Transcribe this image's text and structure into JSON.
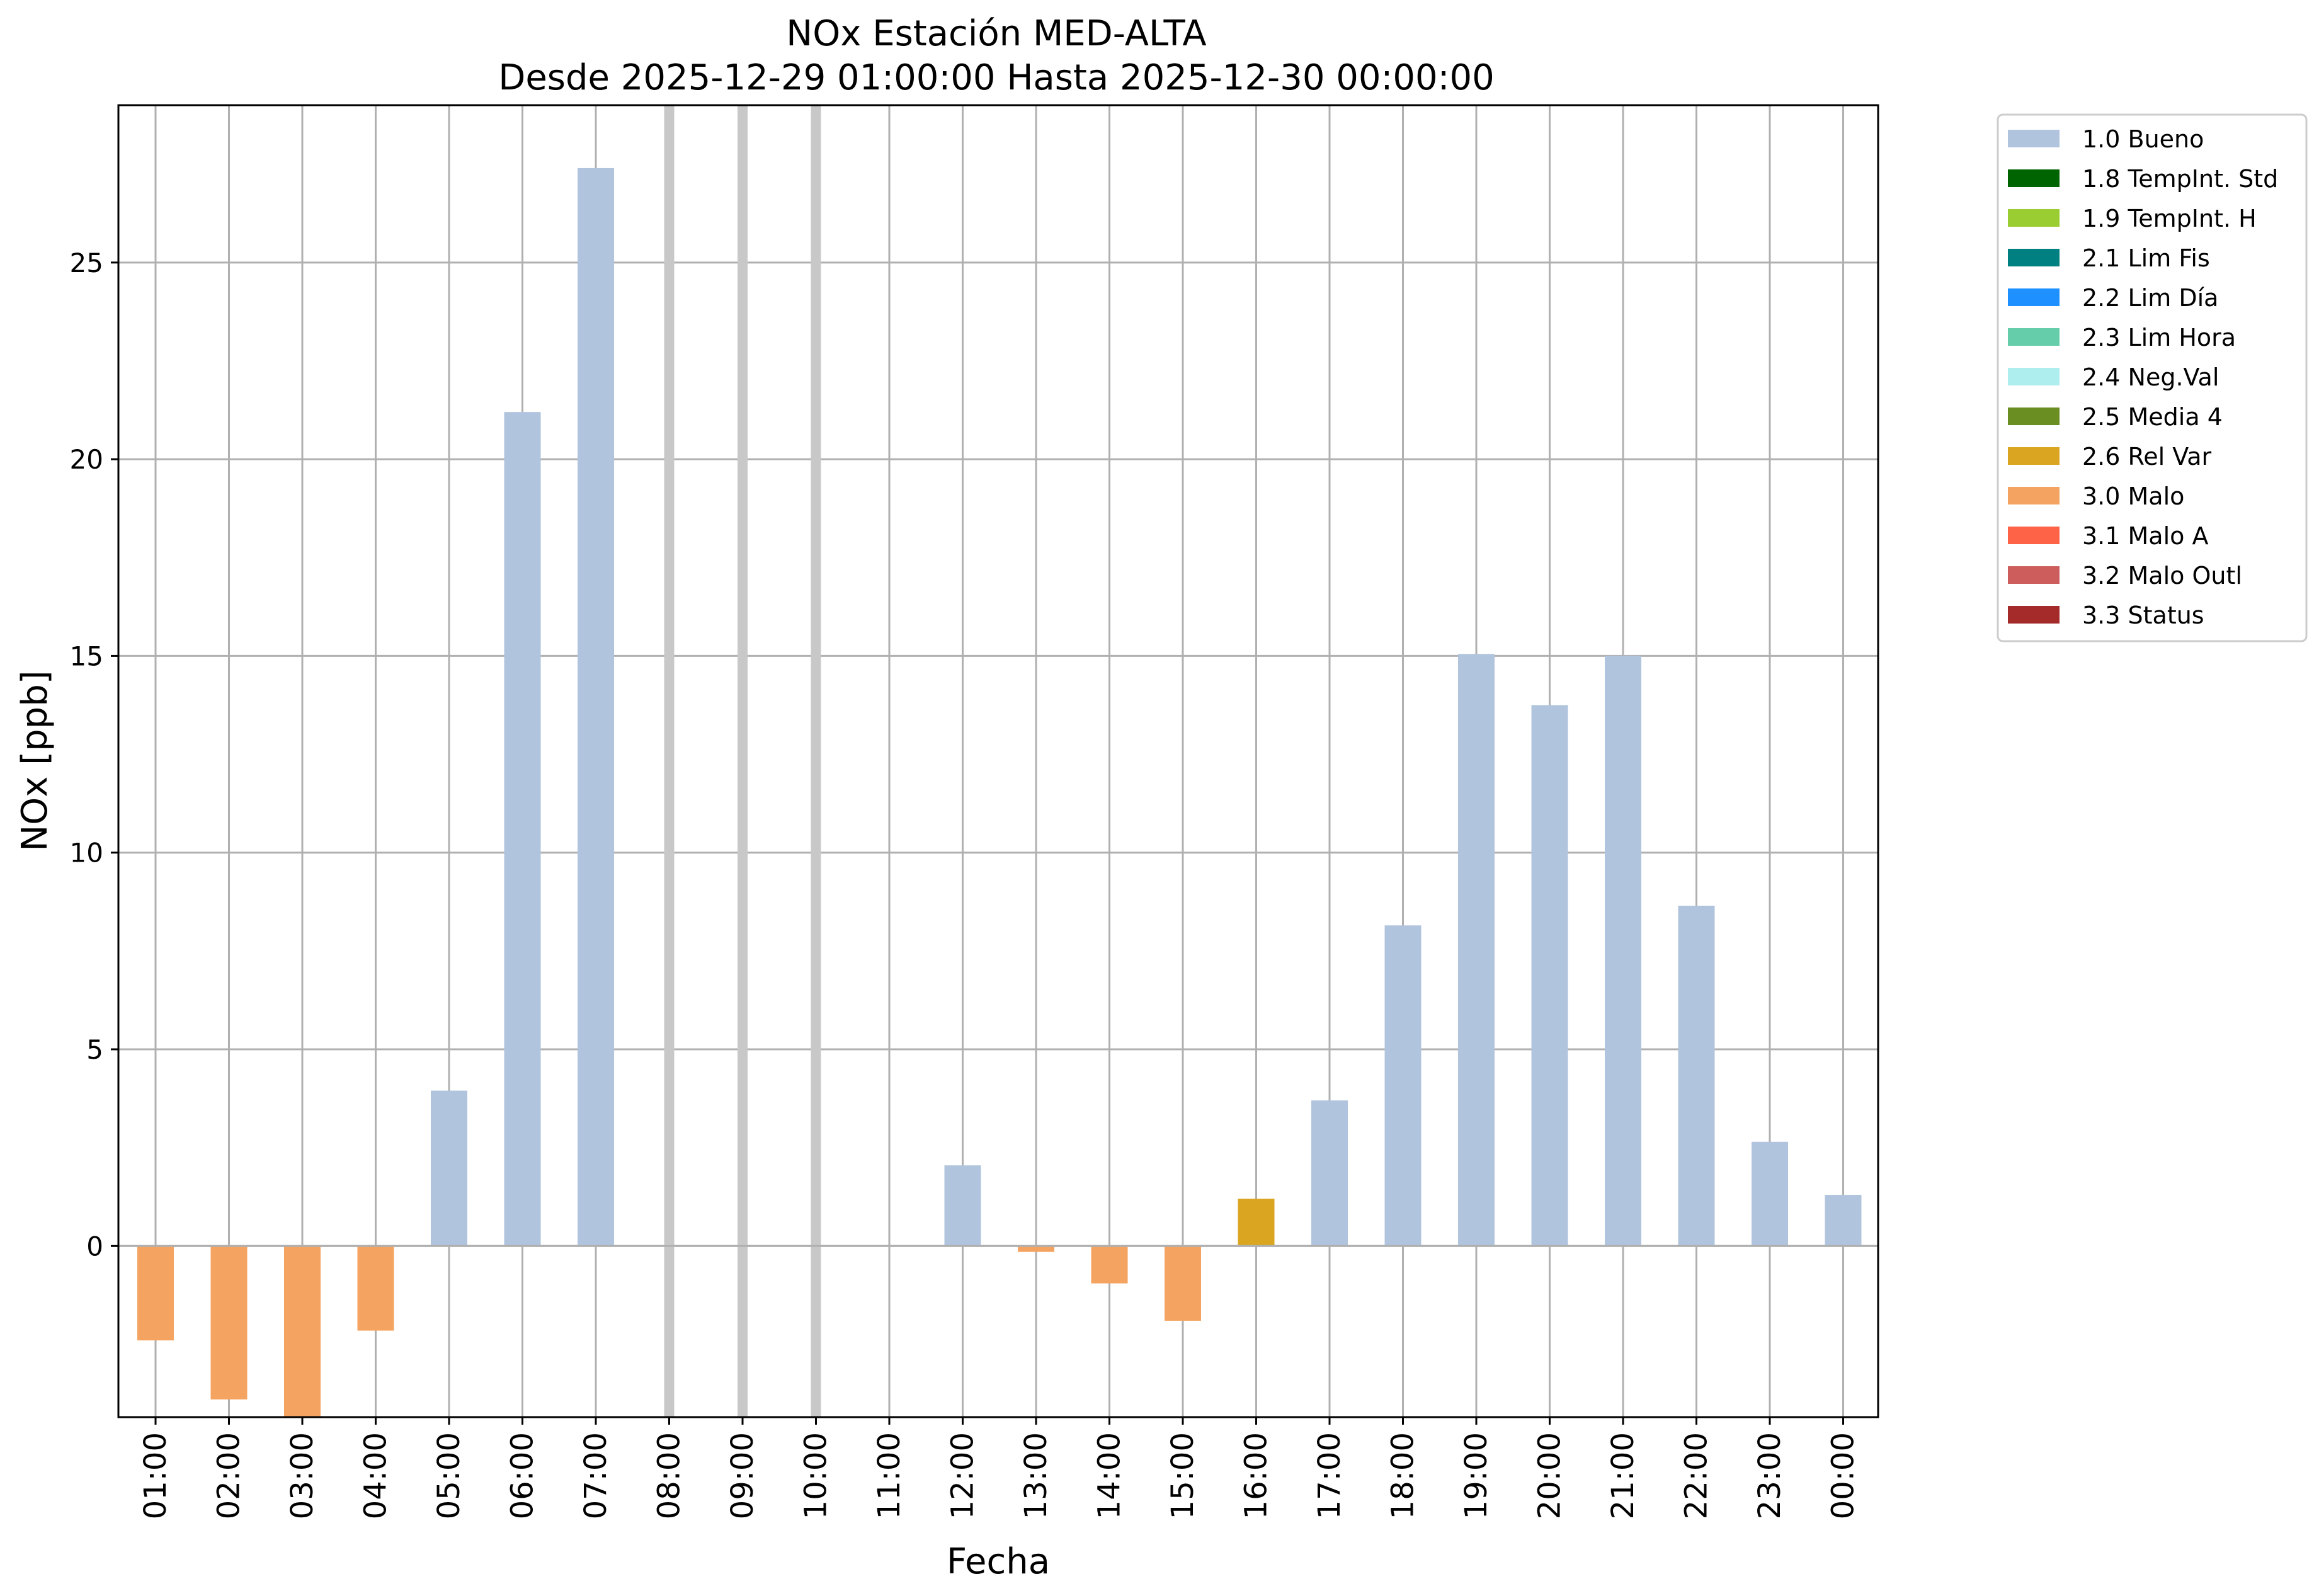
{
  "chart_data": {
    "type": "bar",
    "title": "NOx Estación MED-ALTA",
    "subtitle": "Desde 2025-12-29 01:00:00 Hasta 2025-12-30 00:00:00",
    "xlabel": "Fecha",
    "ylabel": "NOx [ppb]",
    "ylim": [
      -4.35,
      29.0
    ],
    "yticks": [
      0,
      5,
      10,
      15,
      20,
      25
    ],
    "grid": true,
    "legend_placement": "outside-top-right",
    "categories": [
      "01:00",
      "02:00",
      "03:00",
      "04:00",
      "05:00",
      "06:00",
      "07:00",
      "08:00",
      "09:00",
      "10:00",
      "11:00",
      "12:00",
      "13:00",
      "14:00",
      "15:00",
      "16:00",
      "17:00",
      "18:00",
      "19:00",
      "20:00",
      "21:00",
      "22:00",
      "23:00",
      "00:00"
    ],
    "values": [
      -2.4,
      -3.9,
      -4.35,
      -2.15,
      3.95,
      21.2,
      27.4,
      null,
      null,
      null,
      null,
      2.05,
      -0.15,
      -0.95,
      -1.9,
      1.2,
      3.7,
      8.15,
      15.05,
      13.75,
      15.0,
      8.65,
      2.65,
      1.3
    ],
    "flags": [
      "3.0 Malo",
      "3.0 Malo",
      "3.0 Malo",
      "3.0 Malo",
      "1.0 Bueno",
      "1.0 Bueno",
      "1.0 Bueno",
      null,
      null,
      null,
      null,
      "1.0 Bueno",
      "3.0 Malo",
      "3.0 Malo",
      "3.0 Malo",
      "2.6 Rel Var",
      "1.0 Bueno",
      "1.0 Bueno",
      "1.0 Bueno",
      "1.0 Bueno",
      "1.0 Bueno",
      "1.0 Bueno",
      "1.0 Bueno",
      "1.0 Bueno"
    ],
    "missing_marked": [
      "08:00",
      "09:00",
      "10:00"
    ],
    "legend": [
      {
        "name": "1.0 Bueno",
        "color": "#b0c4de"
      },
      {
        "name": "1.8 TempInt. Std",
        "color": "#006400"
      },
      {
        "name": "1.9 TempInt. H",
        "color": "#9acd32"
      },
      {
        "name": "2.1 Lim Fis",
        "color": "#008080"
      },
      {
        "name": "2.2 Lim Día",
        "color": "#1e90ff"
      },
      {
        "name": "2.3 Lim Hora",
        "color": "#66cdaa"
      },
      {
        "name": "2.4 Neg.Val",
        "color": "#afeeee"
      },
      {
        "name": "2.5 Media 4",
        "color": "#6b8e23"
      },
      {
        "name": "2.6 Rel Var",
        "color": "#daa520"
      },
      {
        "name": "3.0 Malo",
        "color": "#f4a460"
      },
      {
        "name": "3.1 Malo A",
        "color": "#ff6347"
      },
      {
        "name": "3.2 Malo Outl",
        "color": "#cd5c5c"
      },
      {
        "name": "3.3 Status",
        "color": "#a52a2a"
      }
    ]
  }
}
